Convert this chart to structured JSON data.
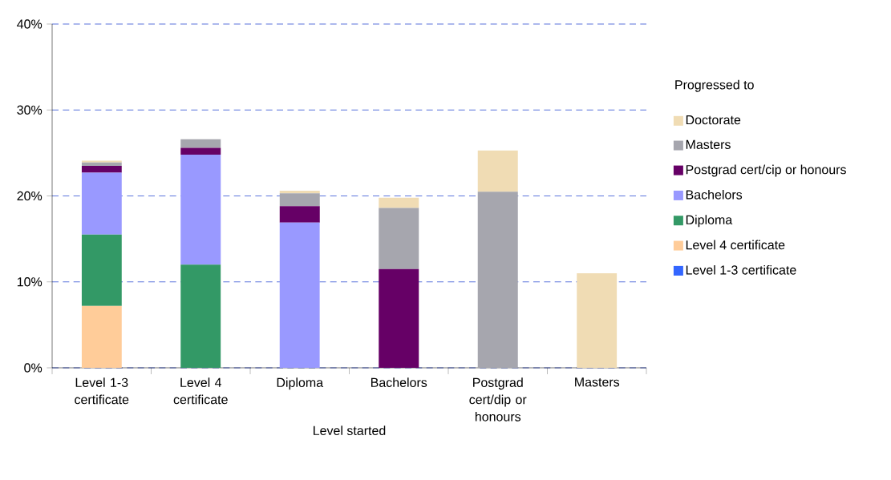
{
  "chart_data": {
    "type": "bar",
    "stacked": true,
    "xlabel": "Level started",
    "legend_title": "Progressed to",
    "categories": [
      "Level 1-3 certificate",
      "Level 4 certificate",
      "Diploma",
      "Bachelors",
      "Postgrad cert/dip or honours",
      "Masters"
    ],
    "series": [
      {
        "name": "Level 1-3 certificate",
        "color": "#3366ff",
        "values": [
          0,
          0,
          0,
          0,
          0,
          0
        ]
      },
      {
        "name": "Level 4 certificate",
        "color": "#ffcc99",
        "values": [
          7.2,
          0,
          0,
          0,
          0,
          0
        ]
      },
      {
        "name": "Diploma",
        "color": "#339966",
        "values": [
          8.3,
          12.0,
          0,
          0,
          0,
          0
        ]
      },
      {
        "name": "Bachelors",
        "color": "#9999ff",
        "values": [
          7.2,
          12.8,
          16.9,
          0,
          0,
          0
        ]
      },
      {
        "name": "Postgrad cert/cip or honours",
        "color": "#660066",
        "values": [
          0.8,
          0.8,
          1.9,
          11.5,
          0,
          0
        ]
      },
      {
        "name": "Masters",
        "color": "#a6a6ae",
        "values": [
          0.4,
          1.0,
          1.5,
          7.1,
          20.5,
          0
        ]
      },
      {
        "name": "Doctorate",
        "color": "#f0dcb4",
        "values": [
          0.2,
          0,
          0.3,
          1.2,
          4.8,
          11.0
        ]
      }
    ],
    "ylim": [
      0,
      40
    ],
    "yticks": [
      {
        "value": 0,
        "label": "0%"
      },
      {
        "value": 10,
        "label": "10%"
      },
      {
        "value": 20,
        "label": "20%"
      },
      {
        "value": 30,
        "label": "30%"
      },
      {
        "value": 40,
        "label": "40%"
      }
    ],
    "grid": "y",
    "legend": "right"
  }
}
